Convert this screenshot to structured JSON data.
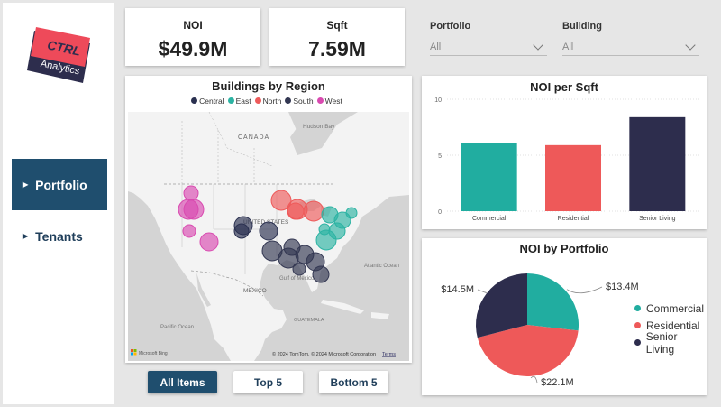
{
  "sidebar": {
    "logo": {
      "line1": "CTRL",
      "line2": "Analytics"
    },
    "nav": [
      {
        "label": "Portfolio",
        "active": true
      },
      {
        "label": "Tenants",
        "active": false
      }
    ]
  },
  "kpis": [
    {
      "label": "NOI",
      "value": "$49.9M"
    },
    {
      "label": "Sqft",
      "value": "7.59M"
    }
  ],
  "slicers": [
    {
      "label": "Portfolio",
      "value": "All"
    },
    {
      "label": "Building",
      "value": "All"
    }
  ],
  "map": {
    "title": "Buildings by Region",
    "legend": [
      {
        "name": "Central",
        "color": "#2a3050"
      },
      {
        "name": "East",
        "color": "#2cb3a3"
      },
      {
        "name": "North",
        "color": "#ee5a5a"
      },
      {
        "name": "South",
        "color": "#333752"
      },
      {
        "name": "West",
        "color": "#d94ab0"
      }
    ],
    "labels": {
      "hudson_bay": "Hudson Bay",
      "canada": "CANADA",
      "united_states": "UNITED STATES",
      "mexico": "MEXICO",
      "gulf": "Gulf of Mexico",
      "atlantic": "Atlantic Ocean",
      "pacific": "Pacific Ocean",
      "guatemala": "GUATEMALA"
    },
    "attribution": "© 2024 TomTom, © 2024 Microsoft Corporation",
    "terms": "Terms",
    "bing": "Microsoft Bing"
  },
  "buttons": [
    {
      "label": "All Items",
      "selected": true
    },
    {
      "label": "Top 5",
      "selected": false
    },
    {
      "label": "Bottom 5",
      "selected": false
    }
  ],
  "chart_data": [
    {
      "type": "bar",
      "title": "NOI per Sqft",
      "categories": [
        "Commercial",
        "Residential",
        "Senior Living"
      ],
      "values": [
        6.1,
        5.9,
        8.4
      ],
      "colors": [
        "#21ada0",
        "#ee5959",
        "#2d2d4d"
      ],
      "yticks": [
        "10",
        "5",
        "0"
      ],
      "ylim": [
        0,
        10
      ]
    },
    {
      "type": "pie",
      "title": "NOI by Portfolio",
      "slices": [
        {
          "name": "Commercial",
          "value": 13.4,
          "label": "$13.4M",
          "color": "#21ada0"
        },
        {
          "name": "Residential",
          "value": 22.1,
          "label": "$22.1M",
          "color": "#ee5959"
        },
        {
          "name": "Senior Living",
          "value": 14.5,
          "label": "$14.5M",
          "color": "#2d2d4d"
        }
      ]
    }
  ]
}
